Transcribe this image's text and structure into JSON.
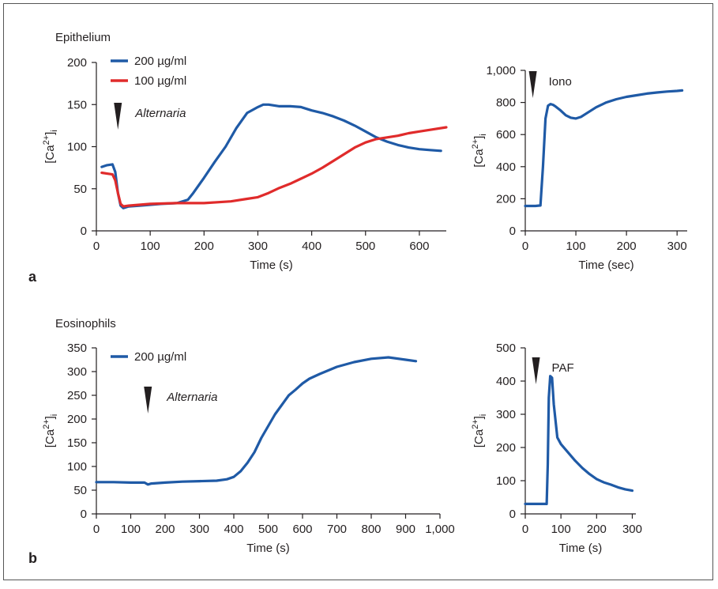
{
  "panel_letters": {
    "a": "a",
    "b": "b"
  },
  "colors": {
    "blue": "#1f5aa6",
    "red": "#e02b2b",
    "axis": "#231f20",
    "marker": "#231f20"
  },
  "chart_data": [
    {
      "id": "a-left",
      "type": "line",
      "title": "Epithelium",
      "xlabel": "Time (s)",
      "ylabel": "[Ca2+]i",
      "xlim": [
        0,
        650
      ],
      "ylim": [
        0,
        200
      ],
      "xticks": [
        0,
        100,
        200,
        300,
        400,
        500,
        600
      ],
      "yticks": [
        0,
        50,
        100,
        150,
        200
      ],
      "xtick_labels": [
        "0",
        "100",
        "200",
        "300",
        "400",
        "500",
        "600"
      ],
      "ytick_labels": [
        "0",
        "50",
        "100",
        "150",
        "200"
      ],
      "legend": [
        {
          "label": "200 µg/ml",
          "color": "#1f5aa6"
        },
        {
          "label": "100 µg/ml",
          "color": "#e02b2b"
        }
      ],
      "annotations": [
        {
          "text": "Alternaria",
          "italic": true,
          "x": 40
        }
      ],
      "series": [
        {
          "name": "200 µg/ml",
          "color": "#1f5aa6",
          "x": [
            10,
            20,
            30,
            35,
            40,
            45,
            50,
            60,
            80,
            100,
            120,
            150,
            170,
            180,
            200,
            220,
            240,
            260,
            280,
            300,
            310,
            320,
            340,
            360,
            380,
            400,
            420,
            440,
            460,
            480,
            500,
            520,
            540,
            560,
            580,
            600,
            620,
            640
          ],
          "y": [
            76,
            78,
            79,
            70,
            45,
            30,
            27,
            29,
            30,
            31,
            32,
            33,
            37,
            45,
            63,
            82,
            100,
            122,
            140,
            147,
            150,
            150,
            148,
            148,
            147,
            143,
            140,
            136,
            131,
            125,
            118,
            111,
            106,
            102,
            99,
            97,
            96,
            95
          ]
        },
        {
          "name": "100 µg/ml",
          "color": "#e02b2b",
          "x": [
            10,
            20,
            30,
            35,
            40,
            45,
            50,
            60,
            80,
            100,
            150,
            200,
            250,
            280,
            300,
            320,
            340,
            360,
            380,
            400,
            420,
            440,
            460,
            480,
            500,
            520,
            540,
            560,
            580,
            600,
            620,
            650
          ],
          "y": [
            69,
            68,
            67,
            60,
            45,
            32,
            29,
            30,
            31,
            32,
            33,
            33,
            35,
            38,
            40,
            45,
            51,
            56,
            62,
            68,
            75,
            83,
            91,
            99,
            105,
            109,
            111,
            113,
            116,
            118,
            120,
            123
          ]
        }
      ]
    },
    {
      "id": "a-right",
      "type": "line",
      "xlabel": "Time (sec)",
      "ylabel": "[Ca2+]i",
      "xlim": [
        0,
        320
      ],
      "ylim": [
        0,
        1000
      ],
      "xticks": [
        0,
        100,
        200,
        300
      ],
      "yticks": [
        0,
        200,
        400,
        600,
        800,
        1000
      ],
      "xtick_labels": [
        "0",
        "100",
        "200",
        "300"
      ],
      "ytick_labels": [
        "0",
        "200",
        "400",
        "600",
        "800",
        "1,000"
      ],
      "annotations": [
        {
          "text": "Iono",
          "italic": false,
          "x": 15
        }
      ],
      "series": [
        {
          "color": "#1f5aa6",
          "x": [
            0,
            10,
            20,
            30,
            35,
            40,
            45,
            50,
            55,
            60,
            70,
            80,
            90,
            100,
            110,
            120,
            140,
            160,
            180,
            200,
            220,
            240,
            260,
            280,
            300,
            310
          ],
          "y": [
            155,
            155,
            155,
            158,
            400,
            700,
            780,
            790,
            785,
            775,
            750,
            720,
            705,
            700,
            710,
            730,
            770,
            800,
            820,
            835,
            845,
            855,
            862,
            868,
            872,
            875
          ]
        }
      ]
    },
    {
      "id": "b-left",
      "type": "line",
      "title": "Eosinophils",
      "xlabel": "Time (s)",
      "ylabel": "[Ca2+]i",
      "xlim": [
        0,
        1000
      ],
      "ylim": [
        0,
        350
      ],
      "xticks": [
        0,
        100,
        200,
        300,
        400,
        500,
        600,
        700,
        800,
        900,
        1000
      ],
      "yticks": [
        0,
        50,
        100,
        150,
        200,
        250,
        300,
        350
      ],
      "xtick_labels": [
        "0",
        "100",
        "200",
        "300",
        "400",
        "500",
        "600",
        "700",
        "800",
        "900",
        "1,000"
      ],
      "ytick_labels": [
        "0",
        "50",
        "100",
        "150",
        "200",
        "250",
        "300",
        "350"
      ],
      "legend": [
        {
          "label": "200 µg/ml",
          "color": "#1f5aa6"
        }
      ],
      "annotations": [
        {
          "text": "Alternaria",
          "italic": true,
          "x": 150
        }
      ],
      "series": [
        {
          "name": "200 µg/ml",
          "color": "#1f5aa6",
          "x": [
            0,
            50,
            100,
            140,
            150,
            160,
            200,
            250,
            300,
            350,
            380,
            400,
            420,
            440,
            460,
            480,
            500,
            520,
            540,
            560,
            580,
            600,
            620,
            650,
            700,
            750,
            800,
            850,
            900,
            930
          ],
          "y": [
            67,
            67,
            66,
            66,
            62,
            64,
            66,
            68,
            69,
            70,
            73,
            78,
            90,
            108,
            130,
            160,
            185,
            210,
            230,
            250,
            262,
            275,
            285,
            295,
            310,
            320,
            327,
            330,
            325,
            322
          ]
        }
      ]
    },
    {
      "id": "b-right",
      "type": "line",
      "xlabel": "Time (s)",
      "ylabel": "[Ca2+]i",
      "xlim": [
        0,
        310
      ],
      "ylim": [
        0,
        500
      ],
      "xticks": [
        0,
        100,
        200,
        300
      ],
      "yticks": [
        0,
        100,
        200,
        300,
        400,
        500
      ],
      "xtick_labels": [
        "0",
        "100",
        "200",
        "300"
      ],
      "ytick_labels": [
        "0",
        "100",
        "200",
        "300",
        "400",
        "500"
      ],
      "annotations": [
        {
          "text": "PAF",
          "italic": false,
          "x": 30
        }
      ],
      "series": [
        {
          "color": "#1f5aa6",
          "x": [
            0,
            20,
            40,
            60,
            63,
            66,
            70,
            75,
            80,
            90,
            100,
            120,
            140,
            160,
            180,
            200,
            220,
            240,
            260,
            280,
            300
          ],
          "y": [
            30,
            30,
            30,
            30,
            150,
            350,
            415,
            410,
            330,
            230,
            210,
            185,
            160,
            138,
            120,
            105,
            95,
            88,
            80,
            74,
            70
          ]
        }
      ]
    }
  ]
}
